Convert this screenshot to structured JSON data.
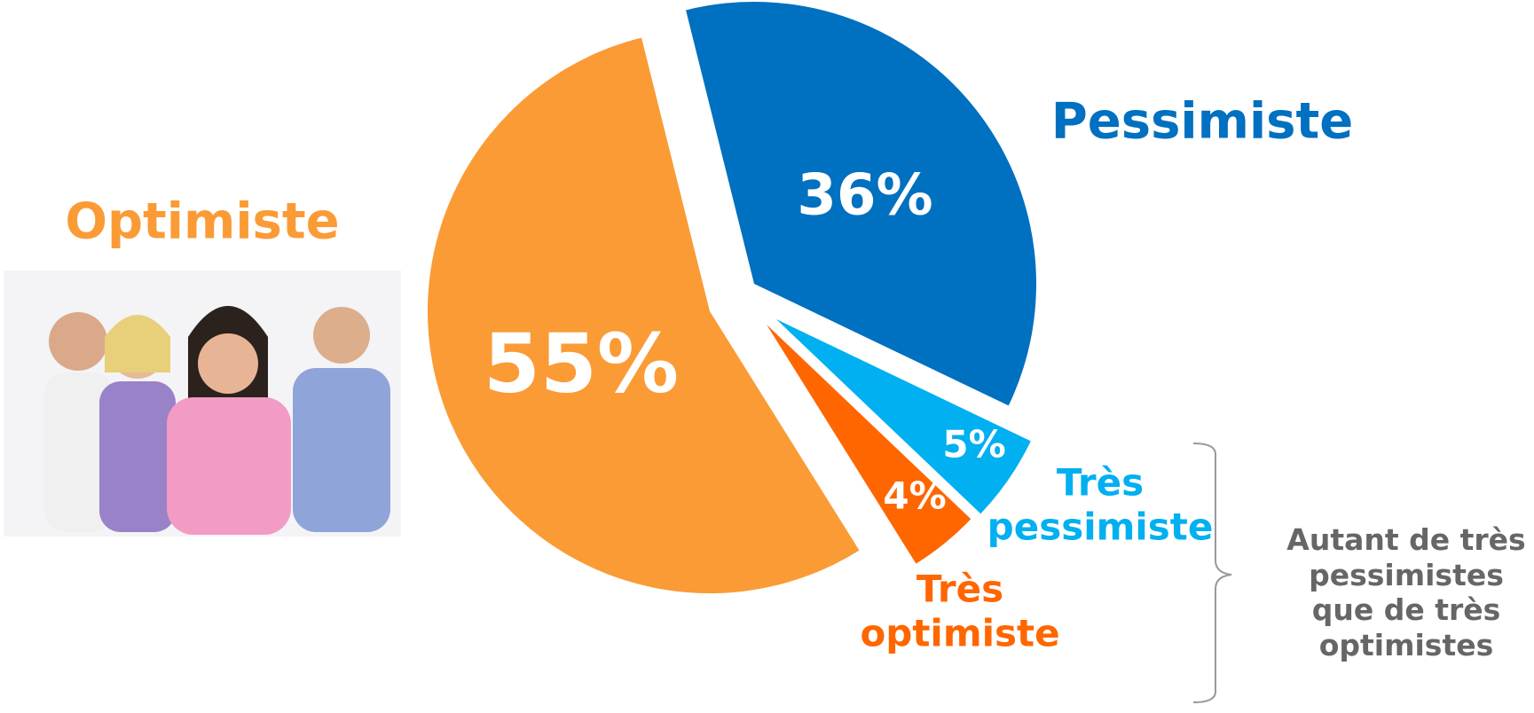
{
  "chart_data": {
    "type": "pie",
    "categories": [
      "Pessimiste",
      "Très pessimiste",
      "Très optimiste",
      "Optimiste"
    ],
    "values": [
      36,
      5,
      4,
      55
    ],
    "value_labels": [
      "36%",
      "5%",
      "4%",
      "55%"
    ],
    "colors": [
      "#0070c0",
      "#00b0f0",
      "#ff6600",
      "#fb9b36"
    ],
    "annotation": "Autant de très pessimistes que de très optimistes"
  }
}
